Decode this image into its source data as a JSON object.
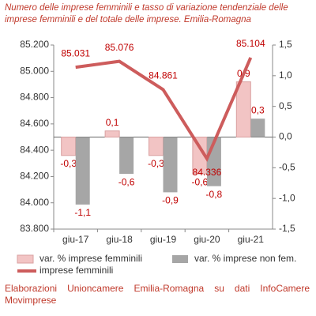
{
  "chart_data": {
    "type": "bar-line",
    "title": "Numero delle imprese femminili e tasso di variazione tendenziale delle imprese femminili e del totale delle imprese. Emilia-Romagna",
    "categories": [
      "giu-17",
      "giu-18",
      "giu-19",
      "giu-20",
      "giu-21"
    ],
    "series": [
      {
        "name": "var. % imprese femminili",
        "color": "#f2c4c4",
        "axis": "y2",
        "type": "bar",
        "values": [
          -0.3,
          0.1,
          -0.3,
          -0.6,
          0.9
        ],
        "value_labels": [
          "-0,3",
          "0,1",
          "-0,3",
          "-0,6",
          "0,9"
        ]
      },
      {
        "name": "var. % imprese non fem.",
        "color": "#a6a6a6",
        "axis": "y2",
        "type": "bar",
        "values": [
          -1.1,
          -0.6,
          -0.9,
          -0.8,
          0.3
        ],
        "value_labels": [
          "-1,1",
          "-0,6",
          "-0,9",
          "-0,8",
          "0,3"
        ]
      },
      {
        "name": "imprese femminili",
        "color": "#cd5c5c",
        "type": "line",
        "values": [
          85031,
          85076,
          84861,
          84336,
          85104
        ],
        "value_labels": [
          "85.031",
          "85.076",
          "84.861",
          "84.336",
          "85.104"
        ]
      }
    ],
    "ylim": [
      83800,
      85200
    ],
    "yticks": [
      {
        "value": 83800,
        "label": "83.800"
      },
      {
        "value": 84000,
        "label": "84.000"
      },
      {
        "value": 84200,
        "label": "84.200"
      },
      {
        "value": 84400,
        "label": "84.400"
      },
      {
        "value": 84600,
        "label": "84.600"
      },
      {
        "value": 84800,
        "label": "84.800"
      },
      {
        "value": 85000,
        "label": "85.000"
      },
      {
        "value": 85200,
        "label": "85.200"
      }
    ],
    "y2lim": [
      -1.5,
      1.5
    ],
    "y2ticks": [
      {
        "value": -1.5,
        "label": "-1,5"
      },
      {
        "value": -1,
        "label": "-1,0"
      },
      {
        "value": -0.5,
        "label": "-0,5"
      },
      {
        "value": 0,
        "label": "0,0"
      },
      {
        "value": 0.5,
        "label": "0,5"
      },
      {
        "value": 1,
        "label": "1,0"
      },
      {
        "value": 1.5,
        "label": "1,5"
      }
    ],
    "source": "Elaborazioni Unioncamere Emilia-Romagna su dati InfoCamere Movimprese"
  }
}
